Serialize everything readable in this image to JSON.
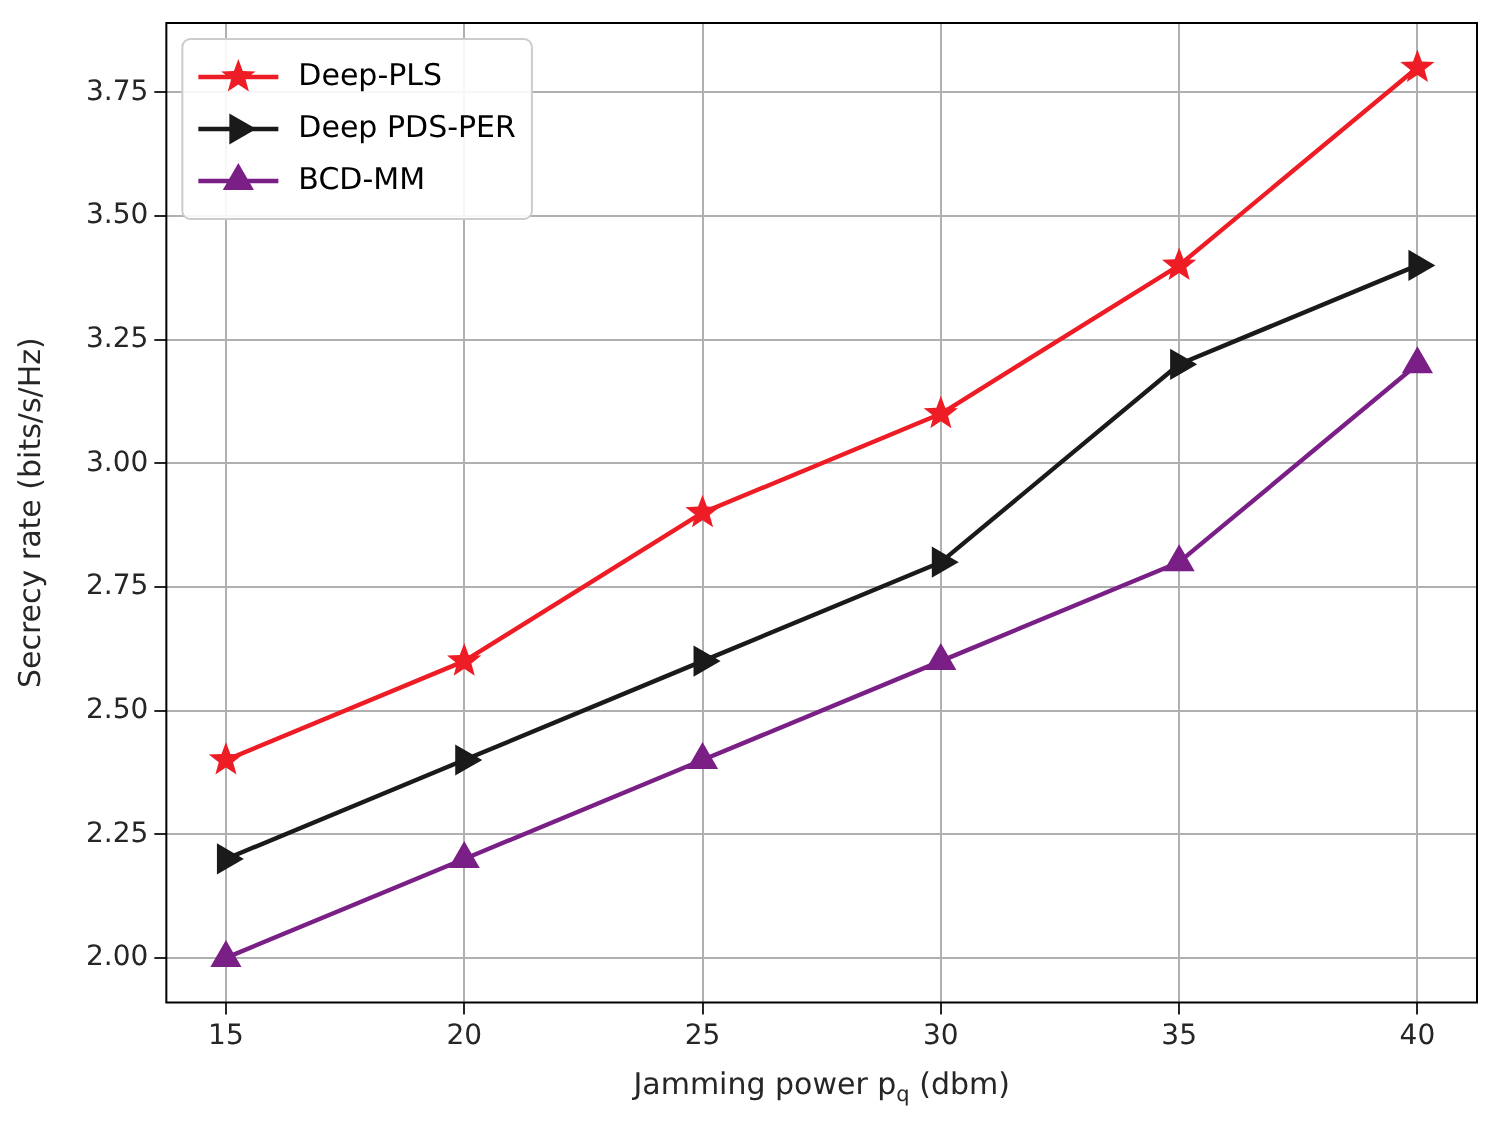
{
  "chart_data": {
    "type": "line",
    "xlabel": "Jamming power p$_{q}$ (dbm)",
    "ylabel": "Secrecy rate (bits/s/Hz)",
    "x": [
      15,
      20,
      25,
      30,
      35,
      40
    ],
    "series": [
      {
        "name": "Deep-PLS",
        "color": "#ee1c25",
        "marker": "star",
        "values": [
          2.4,
          2.6,
          2.9,
          3.1,
          3.4,
          3.8
        ]
      },
      {
        "name": "Deep PDS-PER",
        "color": "#1a1a1a",
        "marker": "triangle-right",
        "values": [
          2.2,
          2.4,
          2.6,
          2.8,
          3.2,
          3.4
        ]
      },
      {
        "name": "BCD-MM",
        "color": "#7a1f86",
        "marker": "triangle",
        "values": [
          2.0,
          2.2,
          2.4,
          2.6,
          2.8,
          3.2
        ]
      }
    ],
    "xlim": [
      13.75,
      41.25
    ],
    "xticks": [
      15,
      20,
      25,
      30,
      35,
      40
    ],
    "ylim": [
      1.91,
      3.89
    ],
    "yticks": [
      {
        "value": 2,
        "label": "2.00"
      },
      {
        "value": 2.25,
        "label": "2.25"
      },
      {
        "value": 2.5,
        "label": "2.50"
      },
      {
        "value": 2.75,
        "label": "2.75"
      },
      {
        "value": 3,
        "label": "3.00"
      },
      {
        "value": 3.25,
        "label": "3.25"
      },
      {
        "value": 3.5,
        "label": "3.50"
      },
      {
        "value": 3.75,
        "label": "3.75"
      }
    ],
    "grid": true,
    "legend": "top left",
    "line_style": "solid"
  }
}
